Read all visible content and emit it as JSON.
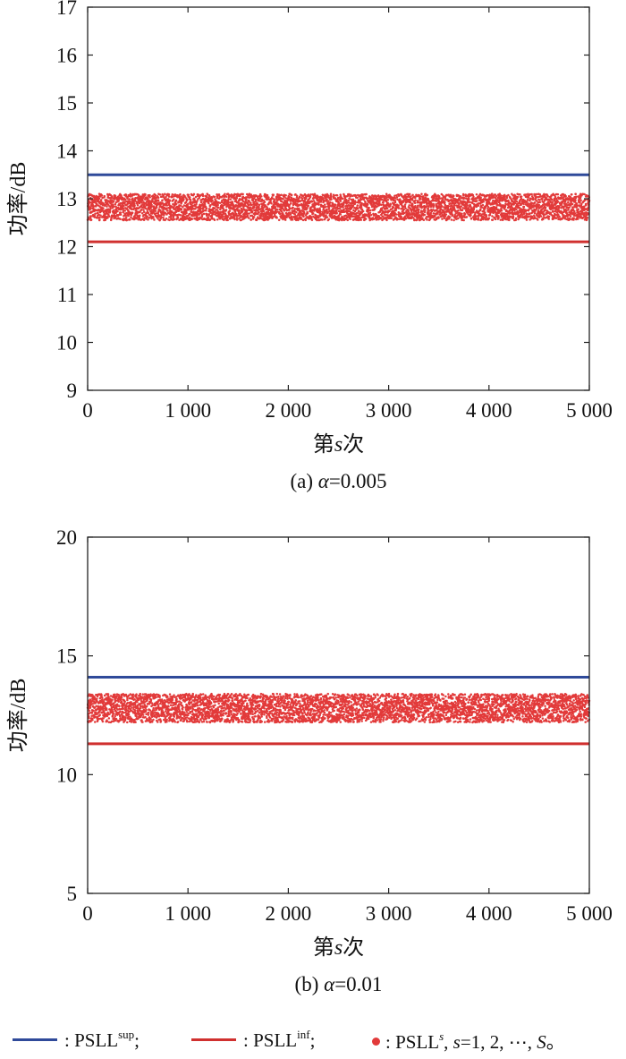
{
  "colors": {
    "sup_line": "#2f4a9a",
    "inf_line": "#d0302f",
    "samples": "#e23a3a"
  },
  "chart_data": [
    {
      "type": "scatter",
      "panel_label": "(a)",
      "caption": "(a) α=0.005",
      "caption_greek": "α",
      "caption_value": "=0.005",
      "xlabel_prefix": "第",
      "xlabel_var": "s",
      "xlabel_suffix": "次",
      "ylabel": "功率/dB",
      "xlim": [
        0,
        5000
      ],
      "ylim": [
        9,
        17
      ],
      "xticks": [
        0,
        1000,
        2000,
        3000,
        4000,
        5000
      ],
      "xtick_labels": [
        "0",
        "1 000",
        "2 000",
        "3 000",
        "4 000",
        "5 000"
      ],
      "yticks": [
        9,
        10,
        11,
        12,
        13,
        14,
        15,
        16,
        17
      ],
      "ytick_labels": [
        "9",
        "10",
        "11",
        "12",
        "13",
        "14",
        "15",
        "16",
        "17"
      ],
      "series": [
        {
          "name": "PSLL^sup",
          "kind": "line",
          "y": 13.5
        },
        {
          "name": "PSLL^inf",
          "kind": "line",
          "y": 12.1
        },
        {
          "name": "PSLL^s",
          "kind": "scatter",
          "count": 5000,
          "y_range": [
            12.55,
            13.1
          ]
        }
      ]
    },
    {
      "type": "scatter",
      "panel_label": "(b)",
      "caption": "(b) α=0.01",
      "caption_greek": "α",
      "caption_value": "=0.01",
      "xlabel_prefix": "第",
      "xlabel_var": "s",
      "xlabel_suffix": "次",
      "ylabel": "功率/dB",
      "xlim": [
        0,
        5000
      ],
      "ylim": [
        5,
        20
      ],
      "xticks": [
        0,
        1000,
        2000,
        3000,
        4000,
        5000
      ],
      "xtick_labels": [
        "0",
        "1 000",
        "2 000",
        "3 000",
        "4 000",
        "5 000"
      ],
      "yticks": [
        5,
        10,
        15,
        20
      ],
      "ytick_labels": [
        "5",
        "10",
        "15",
        "20"
      ],
      "series": [
        {
          "name": "PSLL^sup",
          "kind": "line",
          "y": 14.1
        },
        {
          "name": "PSLL^inf",
          "kind": "line",
          "y": 11.3
        },
        {
          "name": "PSLL^s",
          "kind": "scatter",
          "count": 5000,
          "y_range": [
            12.2,
            13.4
          ]
        }
      ]
    }
  ],
  "legend": {
    "sup_base": ": PSLL",
    "sup_sup": "sup",
    "sup_tail": ";",
    "inf_base": ": PSLL",
    "inf_sup": "inf",
    "inf_tail": ";",
    "samples_base": ": PSLL",
    "samples_sup": "s",
    "samples_tail_1": ", ",
    "samples_var": "s",
    "samples_tail_2": "=1, 2, ⋯, ",
    "samples_var2": "S",
    "samples_tail_3": "。"
  }
}
